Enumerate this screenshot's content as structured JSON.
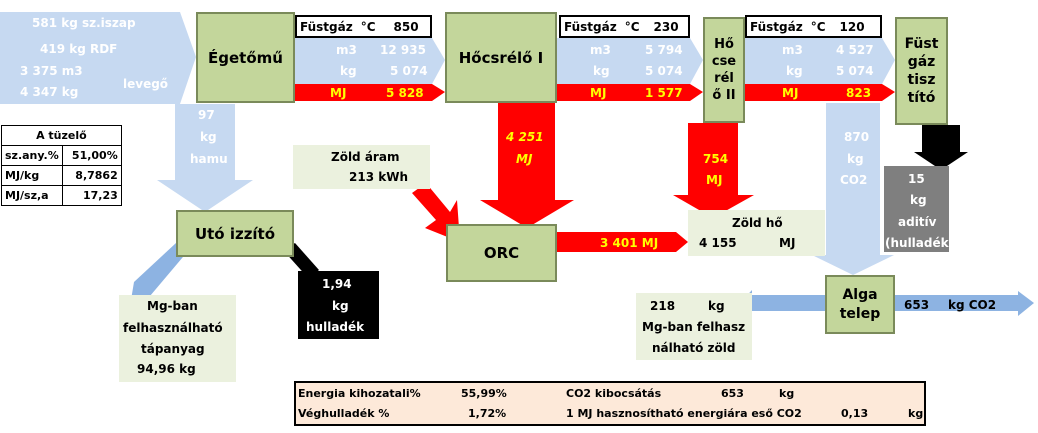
{
  "input": {
    "line1": "581 kg sz.iszap",
    "line2": "419 kg RDF",
    "line3": "3 375 m3",
    "line4": "4 347 kg",
    "levego": "levegő"
  },
  "nodes": {
    "egetomu": "Égetőmű",
    "hocserelo1": "Hőcsrélő I",
    "hocserelo2": [
      "Hő",
      "cse",
      "rél",
      "ő II"
    ],
    "fustgaztisztito": [
      "Füst",
      "gáz",
      "tisz",
      "tító"
    ],
    "utoizzito": "Utó izzító",
    "orc": "ORC",
    "algatelep": [
      "Alga",
      "telep"
    ]
  },
  "flue1": {
    "label": "Füstgáz",
    "unit": "°C",
    "temp": "850",
    "m3_label": "m3",
    "m3": "12 935",
    "kg_label": "kg",
    "kg": "5 074",
    "mj_label": "MJ",
    "mj": "5 828"
  },
  "flue2": {
    "label": "Füstgáz",
    "unit": "°C",
    "temp": "230",
    "m3_label": "m3",
    "m3": "5 794",
    "kg_label": "kg",
    "kg": "5 074",
    "mj_label": "MJ",
    "mj": "1 577"
  },
  "flue3": {
    "label": "Füstgáz",
    "unit": "°C",
    "temp": "120",
    "m3_label": "m3",
    "m3": "4 527",
    "kg_label": "kg",
    "kg": "5 074",
    "mj_label": "MJ",
    "mj": "823"
  },
  "hamu": {
    "value": "97",
    "unit": "kg",
    "label": "hamu"
  },
  "tuzelo": {
    "title": "A tüzelő",
    "rows": [
      [
        "sz.any.%",
        "51,00%"
      ],
      [
        "MJ/kg",
        "8,7862"
      ],
      [
        "MJ/sz,a",
        "17,23"
      ]
    ]
  },
  "hx1_down": {
    "value": "4 251",
    "unit": "MJ"
  },
  "hx2_down": {
    "value": "754",
    "unit": "MJ"
  },
  "zold_aram": {
    "label": "Zöld áram",
    "value": "213 kWh"
  },
  "orc_flow": {
    "value": "3 401 MJ"
  },
  "zold_ho": {
    "label": "Zöld hő",
    "value": "4 155",
    "unit": "MJ"
  },
  "co2": {
    "value": "870",
    "unit": "kg",
    "label": "CO2"
  },
  "aditiv": {
    "value": "15",
    "unit": "kg",
    "label": "aditív",
    "note": "(hulladék)"
  },
  "hulladek": {
    "value": "1,94",
    "unit": "kg",
    "label": "hulladék"
  },
  "tapanyag": {
    "lines": [
      "Mg-ban",
      "felhasználható",
      "tápanyag"
    ],
    "value": "94,96 kg"
  },
  "zold_out": {
    "value": "218",
    "unit": "kg",
    "line2": "Mg-ban felhasz",
    "line3": "nálható zöld"
  },
  "co2_out": {
    "value": "653",
    "unit": "kg CO2"
  },
  "summary": {
    "energia_label": "Energia kihozatali%",
    "energia_value": "55,99%",
    "co2_label": "CO2 kibocsátás",
    "co2_value": "653",
    "co2_unit": "kg",
    "veg_label": "Véghulladék %",
    "veg_value": "1,72%",
    "permj_label": "1 MJ hasznosítható energiára eső CO2",
    "permj_value": "0,13",
    "permj_unit": "kg"
  },
  "colors": {
    "green": "#c3d69b",
    "light_blue": "#c6d9f1",
    "red": "#ff0000",
    "pale_green": "#ebf1de",
    "summary_bg": "#fde9d9",
    "grey": "#7f7f7f",
    "yellow": "#ffff00"
  }
}
